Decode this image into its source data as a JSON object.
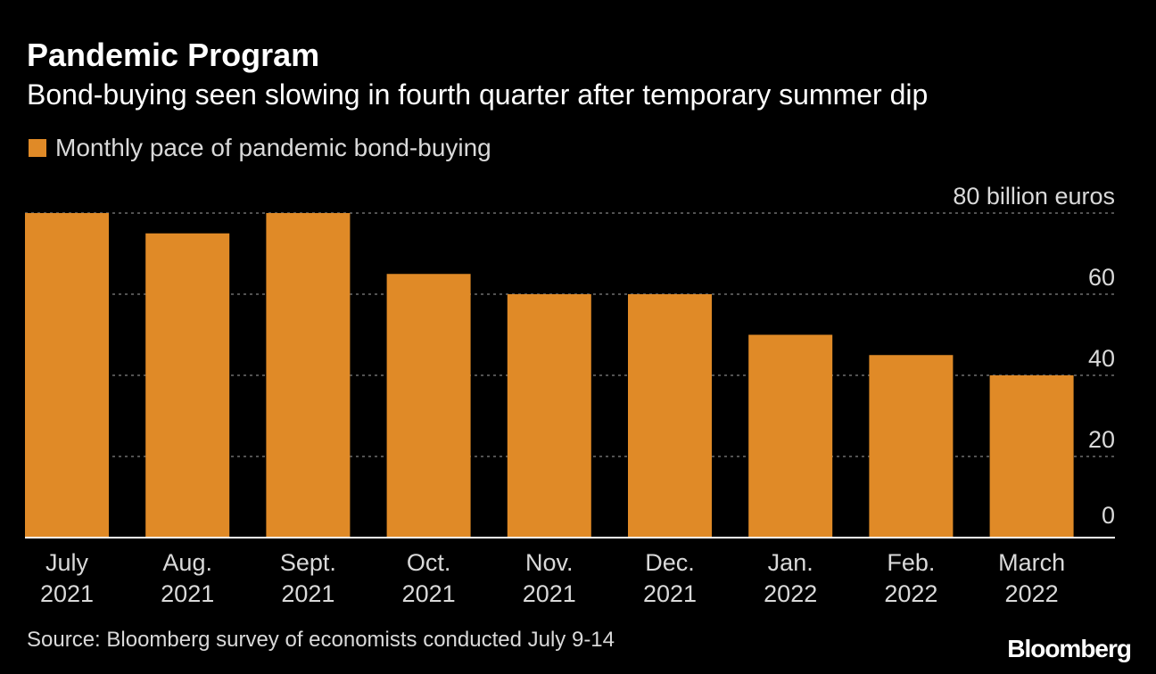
{
  "chart_data": {
    "type": "bar",
    "title": "Pandemic Program",
    "subtitle": "Bond-buying seen slowing in fourth quarter after temporary summer dip",
    "categories": [
      [
        "July",
        "2021"
      ],
      [
        "Aug.",
        "2021"
      ],
      [
        "Sept.",
        "2021"
      ],
      [
        "Oct.",
        "2021"
      ],
      [
        "Nov.",
        "2021"
      ],
      [
        "Dec.",
        "2021"
      ],
      [
        "Jan.",
        "2022"
      ],
      [
        "Feb.",
        "2022"
      ],
      [
        "March",
        "2022"
      ]
    ],
    "series": [
      {
        "name": "Monthly pace of pandemic bond-buying",
        "values": [
          80,
          75,
          80,
          65,
          60,
          60,
          50,
          45,
          40
        ],
        "color": "#e08a27"
      }
    ],
    "ylim": [
      0,
      80
    ],
    "yticks": [
      {
        "value": 0,
        "label": "0"
      },
      {
        "value": 20,
        "label": "20"
      },
      {
        "value": 40,
        "label": "40"
      },
      {
        "value": 60,
        "label": "60"
      },
      {
        "value": 80,
        "label": "80 billion euros"
      }
    ],
    "ylabel": "",
    "xlabel": "",
    "grid": true,
    "legend": "top-left",
    "axis_side": "right"
  },
  "footer": {
    "source": "Source: Bloomberg survey of economists conducted July 9-14",
    "brand": "Bloomberg"
  },
  "colors": {
    "background": "#000000",
    "bar": "#e08a27",
    "grid": "#6e6e6e",
    "text": "#d9d9d9"
  }
}
